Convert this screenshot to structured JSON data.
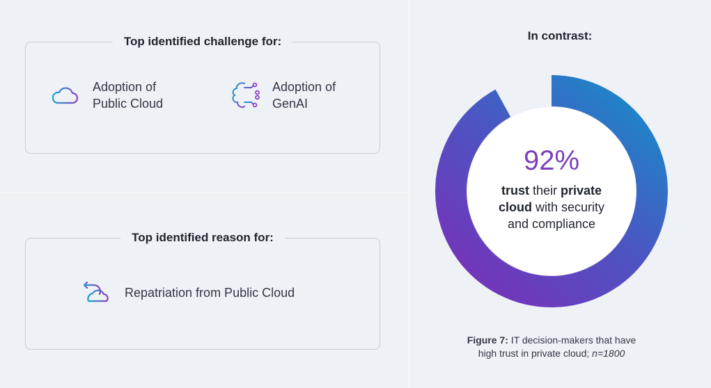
{
  "challenge": {
    "title": "Top identified challenge for:",
    "items": [
      {
        "icon": "cloud-icon",
        "line1": "Adoption of",
        "line2": "Public Cloud"
      },
      {
        "icon": "ai-brain-icon",
        "line1": "Adoption of",
        "line2": "GenAI"
      }
    ]
  },
  "reason": {
    "title": "Top identified reason for:",
    "item": {
      "icon": "repatriation-icon",
      "label": "Repatriation from Public Cloud"
    }
  },
  "contrast": {
    "title": "In contrast:",
    "percent_text": "92%",
    "desc_bold1": "trust",
    "desc_text1": " their ",
    "desc_bold2": "private",
    "desc_bold3": "cloud",
    "desc_text2": " with security",
    "desc_text3": "and compliance"
  },
  "chart_data": {
    "type": "pie",
    "values": [
      92,
      8
    ],
    "colors": {
      "gradient_start": "#0e97c9",
      "gradient_end": "#7a2fb8",
      "gap": "#eef1f6"
    }
  },
  "caption": {
    "label": "Figure 7:",
    "text1": " IT decision-makers that have",
    "text2": "high trust in private cloud; ",
    "n": "n=1800"
  }
}
